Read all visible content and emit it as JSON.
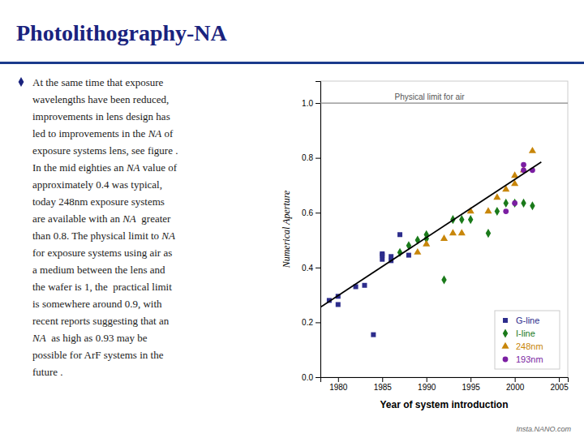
{
  "title": "Photolithography-NA",
  "footer": "Insta.NANO.com",
  "text": [
    "At the same time that exposure",
    "wavelengths have been reduced,",
    "improvements in lens design has",
    "led to improvements in the NA of",
    "exposure systems lens, see figure .",
    "In the mid eighties an NA value of",
    "approximately 0.4 was typical,",
    "today 248nm exposure systems",
    "are available with an NA  greater",
    "than 0.8. The physical limit to NA",
    "for exposure systems using air as",
    "a medium between the lens and",
    "the wafer is 1, the  practical limit",
    "is somewhere around 0.9, with",
    "recent reports suggesting that an",
    "NA  as high as 0.93 may be",
    "possible for ArF systems in the",
    "future ."
  ],
  "chart_data": {
    "type": "scatter",
    "xlabel": "Year of system introduction",
    "ylabel": "Numerical Aperture",
    "xlim": [
      1978,
      2006
    ],
    "ylim": [
      0.0,
      1.08
    ],
    "xticks": [
      1980,
      1985,
      1990,
      1995,
      2000,
      2005
    ],
    "yticks": [
      {
        "value": 0.0,
        "label": "0.0"
      },
      0.2,
      0.4,
      0.6,
      0.8,
      {
        "value": 1.0,
        "label": "1.0"
      }
    ],
    "grid": false,
    "legend": "lower right",
    "annotations": [
      {
        "text": "Physical limit for air",
        "y": 1.0
      }
    ],
    "series": [
      {
        "name": "G-line",
        "type": "scatter",
        "color": "#2d2d8c",
        "marker": "square",
        "x": [
          1979,
          1980,
          1980,
          1982,
          1983,
          1984,
          1985,
          1985,
          1985,
          1986,
          1986,
          1987,
          1988
        ],
        "values": [
          0.28,
          0.265,
          0.295,
          0.33,
          0.335,
          0.155,
          0.43,
          0.45,
          0.445,
          0.425,
          0.44,
          0.52,
          0.445
        ]
      },
      {
        "name": "I-line",
        "type": "scatter",
        "color": "#1a7a1a",
        "marker": "diamond",
        "x": [
          1987,
          1988,
          1989,
          1990,
          1990,
          1992,
          1993,
          1994,
          1995,
          1997,
          1998,
          1999,
          2000,
          2001,
          2002
        ],
        "values": [
          0.455,
          0.48,
          0.5,
          0.505,
          0.52,
          0.355,
          0.575,
          0.575,
          0.575,
          0.525,
          0.605,
          0.635,
          0.635,
          0.635,
          0.625
        ]
      },
      {
        "name": "248nm",
        "type": "scatter",
        "color": "#c8860a",
        "marker": "triangle",
        "x": [
          1989,
          1990,
          1992,
          1993,
          1994,
          1995,
          1997,
          1998,
          1999,
          2000,
          2000,
          2001,
          2002
        ],
        "values": [
          0.455,
          0.485,
          0.505,
          0.525,
          0.525,
          0.605,
          0.605,
          0.655,
          0.685,
          0.735,
          0.705,
          0.755,
          0.825
        ]
      },
      {
        "name": "193nm",
        "type": "scatter",
        "color": "#7b1fa2",
        "marker": "circle",
        "x": [
          1999,
          2000,
          2001,
          2001,
          2002
        ],
        "values": [
          0.605,
          0.635,
          0.755,
          0.775,
          0.755
        ]
      },
      {
        "type": "line",
        "color": "#000000",
        "line_style": "solid",
        "x": [
          1978,
          2003
        ],
        "values": [
          0.255,
          0.785
        ]
      }
    ]
  }
}
